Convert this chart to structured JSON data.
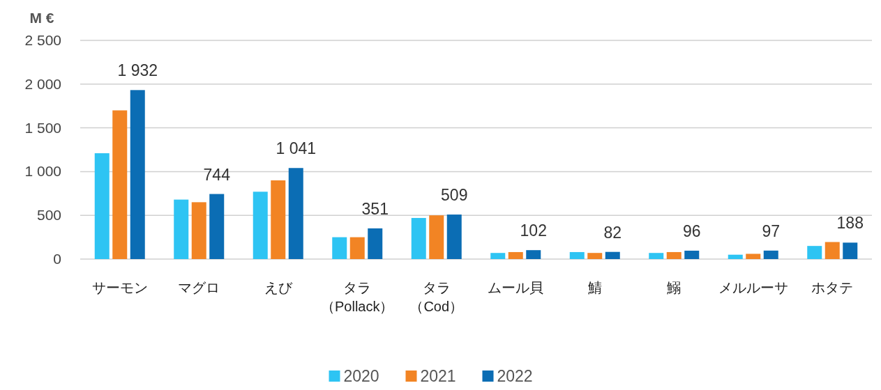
{
  "chart_data": {
    "type": "bar",
    "ylabel": "M €",
    "categories": [
      "サーモン",
      "マグロ",
      "えび",
      "タラ（Pollack）",
      "タラ（Cod）",
      "ムール貝",
      "鯖",
      "鰯",
      "メルルーサ",
      "ホタテ"
    ],
    "series": [
      {
        "name": "2020",
        "color": "#2ec4f3",
        "values": [
          1210,
          680,
          770,
          250,
          470,
          70,
          80,
          70,
          50,
          150
        ]
      },
      {
        "name": "2021",
        "color": "#f28424",
        "values": [
          1700,
          650,
          900,
          250,
          500,
          80,
          70,
          80,
          60,
          195
        ]
      },
      {
        "name": "2022",
        "color": "#0b6db4",
        "values": [
          1932,
          744,
          1041,
          351,
          509,
          102,
          82,
          96,
          97,
          188
        ],
        "value_labels": [
          "1 932",
          "744",
          "1 041",
          "351",
          "509",
          "102",
          "82",
          "96",
          "97",
          "188"
        ]
      }
    ],
    "ylim": [
      0,
      2500
    ],
    "yticks": [
      {
        "value": 0,
        "label": "0"
      },
      {
        "value": 500,
        "label": "500"
      },
      {
        "value": 1000,
        "label": "1 000"
      },
      {
        "value": 1500,
        "label": "1 500"
      },
      {
        "value": 2000,
        "label": "2 000"
      },
      {
        "value": 2500,
        "label": "2 500"
      }
    ],
    "grid": "y",
    "legend": "bottom"
  }
}
